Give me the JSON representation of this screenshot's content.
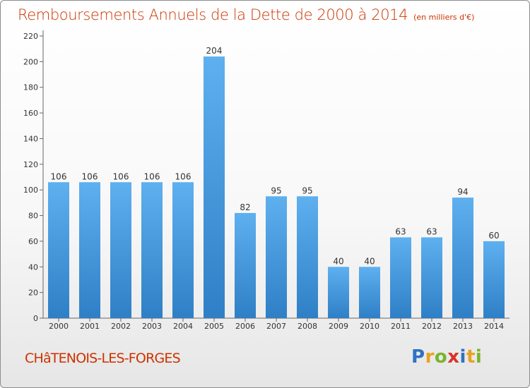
{
  "chart_data": {
    "type": "bar",
    "title": "Remboursements Annuels de la Dette de 2000 à 2014",
    "subtitle": "(en milliers d'€)",
    "xlabel": "",
    "ylabel": "",
    "categories": [
      "2000",
      "2001",
      "2002",
      "2003",
      "2004",
      "2005",
      "2006",
      "2007",
      "2008",
      "2009",
      "2010",
      "2011",
      "2012",
      "2013",
      "2014"
    ],
    "values": [
      106,
      106,
      106,
      106,
      106,
      204,
      82,
      95,
      95,
      40,
      40,
      63,
      63,
      94,
      60
    ],
    "ylim": [
      0,
      220
    ],
    "yticks": [
      0,
      20,
      40,
      60,
      80,
      100,
      120,
      140,
      160,
      180,
      200,
      220
    ],
    "grid": false,
    "bar_color": "#3d8fd8",
    "data_labels": true
  },
  "commune": "CHâTENOIS-LES-FORGES",
  "logo": {
    "text": "Proxiti",
    "colors": [
      "#2e72c2",
      "#e9a21f",
      "#79b52c",
      "#d8332a",
      "#2e72c2",
      "#e9a21f",
      "#79b52c"
    ]
  },
  "colors": {
    "accent": "#cc3300",
    "axis": "#666666"
  }
}
